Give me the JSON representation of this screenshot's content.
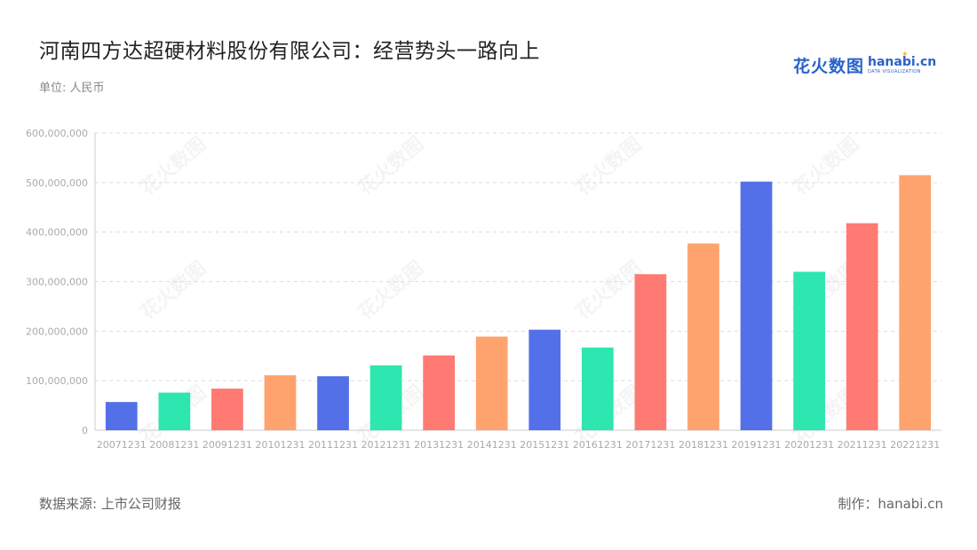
{
  "header": {
    "title": "河南四方达超硬材料股份有限公司：经营势头一路向上",
    "unit": "单位: 人民币"
  },
  "logo": {
    "cn": "花火数图",
    "en": "hanabi.cn",
    "sub": "DATA VISUALIZATION"
  },
  "footer": {
    "source": "数据来源: 上市公司财报",
    "maker": "制作：hanabi.cn"
  },
  "colors": {
    "palette": [
      "#5470e8",
      "#2ee6b0",
      "#ff7a73",
      "#ffa36e"
    ],
    "grid": "#dddddd",
    "tick": "#aaaaaa"
  },
  "chart_data": {
    "type": "bar",
    "categories": [
      "20071231",
      "20081231",
      "20091231",
      "20101231",
      "20111231",
      "20121231",
      "20131231",
      "20141231",
      "20151231",
      "20161231",
      "20171231",
      "20181231",
      "20191231",
      "20201231",
      "20211231",
      "20221231"
    ],
    "values": [
      57000000,
      76000000,
      84000000,
      111000000,
      109000000,
      131000000,
      151000000,
      189000000,
      203000000,
      167000000,
      315000000,
      377000000,
      502000000,
      320000000,
      418000000,
      515000000
    ],
    "yticks": [
      "0",
      "100,000,000",
      "200,000,000",
      "300,000,000",
      "400,000,000",
      "500,000,000",
      "600,000,000"
    ],
    "ylim": [
      0,
      600000000
    ],
    "grid": true,
    "legend": "none"
  }
}
